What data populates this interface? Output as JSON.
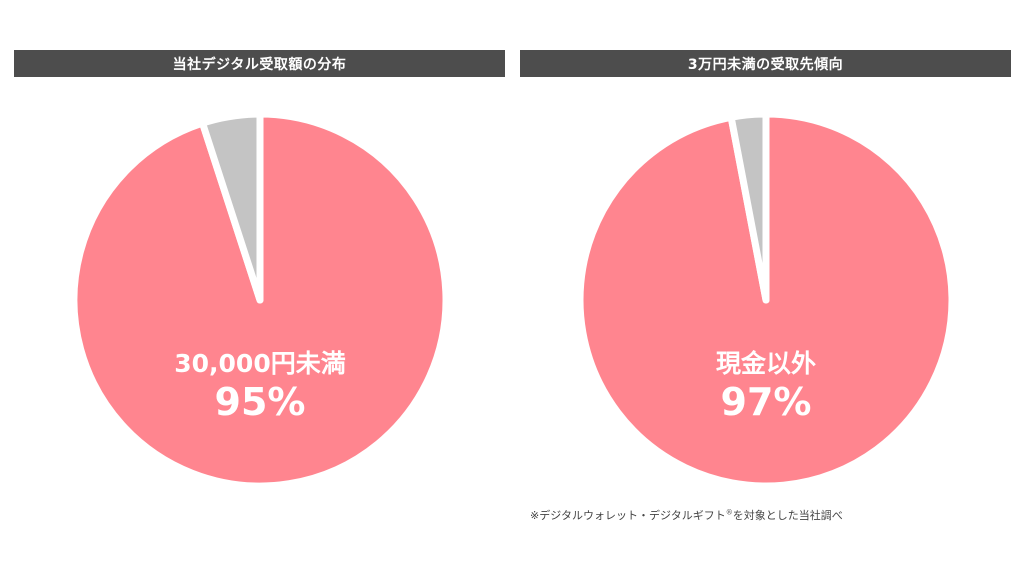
{
  "chart_data": [
    {
      "type": "pie",
      "title": "当社デジタル受取額の分布",
      "slices": [
        {
          "label": "30,000円未満",
          "value": 95,
          "value_label": "95%",
          "color": "#ff858f"
        },
        {
          "label": "",
          "value": 5,
          "value_label": "",
          "color": "#c4c4c4"
        }
      ],
      "start_angle": "12 o'clock",
      "direction": "clockwise"
    },
    {
      "type": "pie",
      "title": "3万円未満の受取先傾向",
      "slices": [
        {
          "label": "現金以外",
          "value": 97,
          "value_label": "97%",
          "color": "#ff858f"
        },
        {
          "label": "",
          "value": 3,
          "value_label": "",
          "color": "#c4c4c4"
        }
      ],
      "start_angle": "12 o'clock",
      "direction": "clockwise"
    }
  ],
  "colors": {
    "header_bg": "#4d4d4d",
    "header_text": "#ffffff",
    "separator": "#ffffff"
  },
  "footnote": {
    "text": "※デジタルウォレット・デジタルギフト",
    "sup": "®",
    "text_after": "を対象とした当社調べ"
  }
}
